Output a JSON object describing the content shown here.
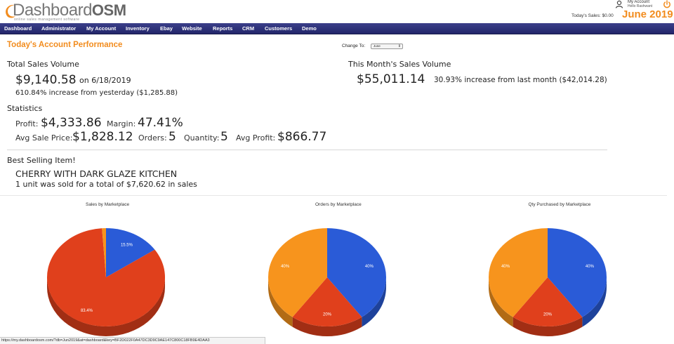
{
  "header": {
    "logo_main": "Dashboard",
    "logo_osm": "OSM",
    "logo_tagline": "online sales management software",
    "account_label": "My Account",
    "account_greeting": "Hello Rashwant",
    "todays_sales": "Today's Sales: $0.00",
    "month_title": "June 2019"
  },
  "nav": {
    "items": [
      "Dashboard",
      "Administrator",
      "My Account",
      "Inventory",
      "Ebay",
      "Website",
      "Reports",
      "CRM",
      "Customers",
      "Demo"
    ]
  },
  "main": {
    "section_title": "Today's Account Performance",
    "change_to_label": "Change To:",
    "change_to_value": "June",
    "total_sales": {
      "label": "Total Sales Volume",
      "amount": "$9,140.58",
      "on_text": "on 6/18/2019",
      "change_pct": "610.84% increase",
      "change_text": "from yesterday ($1,285.88)"
    },
    "month_sales": {
      "label": "This Month's Sales Volume",
      "amount": "$55,011.14",
      "change_pct": "30.93% increase",
      "change_text": "from last month ($42,014.28)"
    },
    "statistics": {
      "label": "Statistics",
      "profit_label": "Profit:",
      "profit_value": "$4,333.86",
      "margin_label": "Margin:",
      "margin_value": "47.41%",
      "avg_sale_label": "Avg Sale Price:",
      "avg_sale_value": "$1,828.12",
      "orders_label": "Orders:",
      "orders_value": "5",
      "quantity_label": "Quantity:",
      "quantity_value": "5",
      "avg_profit_label": "Avg Profit:",
      "avg_profit_value": "$866.77"
    },
    "best_selling": {
      "label": "Best Selling Item!",
      "item_name": "CHERRY WITH DARK GLAZE KITCHEN",
      "detail": "1 unit was sold for a total of $7,620.62 in sales"
    }
  },
  "chart_data": [
    {
      "type": "pie",
      "title": "Sales by Marketplace",
      "slices": [
        {
          "value": 15.5,
          "label": "15.5%",
          "color": "#2a5bd7"
        },
        {
          "value": 83.4,
          "label": "83.4%",
          "color": "#e0401c"
        },
        {
          "value": 1.1,
          "label": "",
          "color": "#f7941d"
        }
      ]
    },
    {
      "type": "pie",
      "title": "Orders by Marketplace",
      "slices": [
        {
          "value": 40,
          "label": "40%",
          "color": "#2a5bd7"
        },
        {
          "value": 20,
          "label": "20%",
          "color": "#e0401c"
        },
        {
          "value": 40,
          "label": "40%",
          "color": "#f7941d"
        }
      ]
    },
    {
      "type": "pie",
      "title": "Qty Purchased by Marketplace",
      "slices": [
        {
          "value": 40,
          "label": "40%",
          "color": "#2a5bd7"
        },
        {
          "value": 20,
          "label": "20%",
          "color": "#e0401c"
        },
        {
          "value": 40,
          "label": "40%",
          "color": "#f7941d"
        }
      ]
    }
  ],
  "statusbar": {
    "url": "https://my.dashboardosm.com/?db=Jun2019&at=dashboard&key=BF2D022F0A47DC3D9C9AE147C800C18FB9E4DAA3"
  },
  "colors": {
    "accent": "#f28c1e",
    "nav_bg": "#2c2f78",
    "blue": "#2a5bd7",
    "red": "#e0401c",
    "orange": "#f7941d"
  }
}
